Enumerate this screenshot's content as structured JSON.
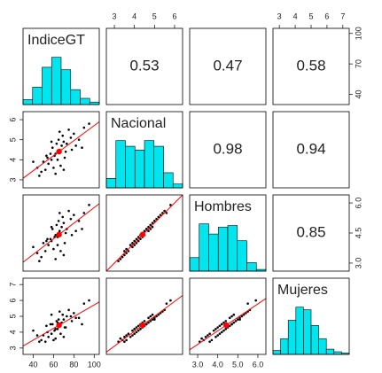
{
  "chart_data": {
    "type": "scatter_matrix",
    "variables": [
      {
        "name": "IndiceGT",
        "lim": [
          30,
          105
        ],
        "xticks": [
          40,
          60,
          80,
          100
        ],
        "yticks": [
          40,
          70,
          100
        ],
        "bins": [
          30,
          40,
          50,
          60,
          70,
          80,
          90,
          100,
          110
        ],
        "counts": [
          4,
          14,
          30,
          38,
          28,
          12,
          5,
          2
        ]
      },
      {
        "name": "Nacional",
        "lim": [
          2.6,
          6.4
        ],
        "xticks": [
          3,
          4,
          5,
          6
        ],
        "yticks": [
          3,
          4,
          5,
          6
        ],
        "bins": [
          2.5,
          3,
          3.5,
          4,
          4.5,
          5,
          5.5,
          6,
          6.5
        ],
        "counts": [
          5,
          25,
          22,
          20,
          25,
          22,
          8,
          2
        ]
      },
      {
        "name": "Hombres",
        "lim": [
          2.6,
          6.4
        ],
        "xticks": [
          {
            "value": 3,
            "label": "3.0"
          },
          {
            "value": 4,
            "label": "4.0"
          },
          {
            "value": 5,
            "label": "5.0"
          },
          {
            "value": 6,
            "label": "6.0"
          }
        ],
        "yticks": [
          {
            "value": 3,
            "label": "3.0"
          },
          4.5,
          {
            "value": 6,
            "label": "6.0"
          }
        ],
        "bins": [
          2.5,
          3,
          3.5,
          4,
          4.5,
          5,
          5.5,
          6,
          6.5
        ],
        "counts": [
          8,
          28,
          22,
          26,
          27,
          18,
          5,
          1
        ]
      },
      {
        "name": "Mujeres",
        "lim": [
          2.6,
          7.4
        ],
        "xticks": [
          3,
          4,
          5,
          6,
          7
        ],
        "yticks": [
          3,
          4,
          5,
          6,
          7
        ],
        "bins": [
          2.5,
          3,
          3.5,
          4,
          4.5,
          5,
          5.5,
          6,
          6.5,
          7,
          7.5
        ],
        "counts": [
          3,
          12,
          26,
          36,
          34,
          22,
          12,
          4,
          2,
          1
        ]
      }
    ],
    "correlations": [
      [
        null,
        0.53,
        0.47,
        0.58
      ],
      [
        null,
        null,
        0.98,
        0.94
      ],
      [
        null,
        null,
        null,
        0.85
      ],
      [
        null,
        null,
        null,
        null
      ]
    ],
    "observations": [
      [
        62,
        4.3,
        4.4,
        4.2
      ],
      [
        55,
        3.8,
        3.9,
        3.7
      ],
      [
        70,
        4.9,
        5.0,
        4.8
      ],
      [
        48,
        3.4,
        3.3,
        3.5
      ],
      [
        80,
        5.3,
        5.4,
        5.2
      ],
      [
        66,
        4.5,
        4.6,
        4.4
      ],
      [
        58,
        4.0,
        4.1,
        3.9
      ],
      [
        73,
        4.8,
        4.7,
        5.0
      ],
      [
        90,
        5.6,
        5.5,
        5.8
      ],
      [
        44,
        3.6,
        3.5,
        3.8
      ],
      [
        61,
        4.2,
        4.3,
        4.1
      ],
      [
        68,
        4.7,
        4.8,
        4.6
      ],
      [
        52,
        3.5,
        3.6,
        3.4
      ],
      [
        77,
        5.1,
        5.2,
        5.0
      ],
      [
        64,
        4.4,
        4.3,
        4.6
      ],
      [
        59,
        4.6,
        4.7,
        4.5
      ],
      [
        71,
        4.1,
        4.0,
        4.3
      ],
      [
        85,
        5.0,
        5.1,
        4.9
      ],
      [
        50,
        3.9,
        4.0,
        3.8
      ],
      [
        63,
        4.8,
        4.9,
        4.7
      ],
      [
        67,
        3.7,
        3.6,
        3.9
      ],
      [
        75,
        5.5,
        5.6,
        5.4
      ],
      [
        57,
        4.3,
        4.2,
        4.5
      ],
      [
        69,
        5.2,
        5.3,
        5.1
      ],
      [
        46,
        3.2,
        3.1,
        3.4
      ],
      [
        72,
        4.4,
        4.5,
        4.3
      ],
      [
        60,
        3.6,
        3.7,
        3.5
      ],
      [
        82,
        4.7,
        4.6,
        4.9
      ],
      [
        65,
        5.0,
        5.1,
        4.8
      ],
      [
        54,
        4.1,
        4.2,
        4.0
      ],
      [
        78,
        4.5,
        4.4,
        4.7
      ],
      [
        62,
        3.3,
        3.2,
        3.6
      ],
      [
        95,
        5.8,
        5.9,
        6.0
      ],
      [
        40,
        3.9,
        3.8,
        4.1
      ],
      [
        66,
        5.4,
        5.5,
        5.3
      ],
      [
        58,
        4.9,
        4.8,
        5.1
      ],
      [
        70,
        3.5,
        3.4,
        3.7
      ],
      [
        64,
        4.0,
        3.9,
        4.2
      ],
      [
        88,
        4.6,
        4.7,
        4.5
      ],
      [
        53,
        4.2,
        4.1,
        4.4
      ]
    ],
    "hist_color": "#00e5ee",
    "point_color": "#000000",
    "mean_color": "#ff0000"
  }
}
